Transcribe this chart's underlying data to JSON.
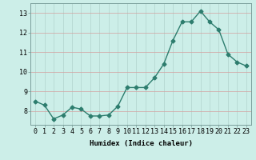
{
  "x": [
    0,
    1,
    2,
    3,
    4,
    5,
    6,
    7,
    8,
    9,
    10,
    11,
    12,
    13,
    14,
    15,
    16,
    17,
    18,
    19,
    20,
    21,
    22,
    23
  ],
  "y": [
    8.5,
    8.3,
    7.6,
    7.8,
    8.2,
    8.1,
    7.75,
    7.75,
    7.8,
    8.25,
    9.2,
    9.2,
    9.2,
    9.7,
    10.4,
    11.6,
    12.55,
    12.55,
    13.1,
    12.55,
    12.15,
    10.9,
    10.5,
    10.3
  ],
  "line_color": "#2d7d6e",
  "marker": "D",
  "marker_size": 2.5,
  "bg_color": "#cceee8",
  "grid_v_color": "#b0d4cc",
  "grid_h_color": "#d4a0a0",
  "xlabel": "Humidex (Indice chaleur)",
  "xlim": [
    -0.5,
    23.5
  ],
  "ylim": [
    7.3,
    13.5
  ],
  "yticks": [
    8,
    9,
    10,
    11,
    12,
    13
  ],
  "xticks": [
    0,
    1,
    2,
    3,
    4,
    5,
    6,
    7,
    8,
    9,
    10,
    11,
    12,
    13,
    14,
    15,
    16,
    17,
    18,
    19,
    20,
    21,
    22,
    23
  ],
  "xlabel_fontsize": 6.5,
  "tick_fontsize": 6,
  "line_width": 1.0
}
